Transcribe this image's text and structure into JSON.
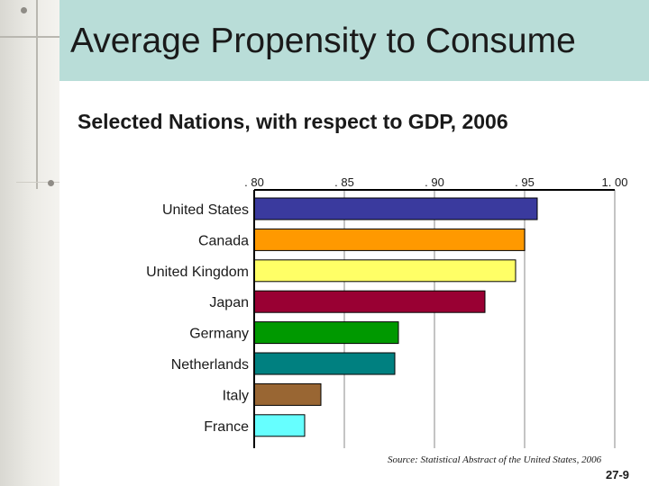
{
  "slide": {
    "title": "Average Propensity to Consume",
    "subtitle": "Selected Nations, with respect to GDP, 2006",
    "source": "Source: Statistical Abstract of the United States, 2006",
    "slide_number": "27-9"
  },
  "chart_data": {
    "type": "bar",
    "orientation": "horizontal",
    "title": "",
    "xlabel": "",
    "ylabel": "",
    "x_axis_position": "top",
    "xlim": [
      0.8,
      1.0
    ],
    "ticks": [
      0.8,
      0.85,
      0.9,
      0.95,
      1.0
    ],
    "tick_labels": [
      ". 80",
      ". 85",
      ". 90",
      ". 95",
      "1. 00"
    ],
    "grid": true,
    "categories": [
      "United States",
      "Canada",
      "United Kingdom",
      "Japan",
      "Germany",
      "Netherlands",
      "Italy",
      "France"
    ],
    "values": [
      0.957,
      0.95,
      0.945,
      0.928,
      0.88,
      0.878,
      0.837,
      0.828
    ],
    "colors": [
      "#3a3a9e",
      "#ff9900",
      "#ffff66",
      "#990033",
      "#009900",
      "#008080",
      "#996633",
      "#66ffff"
    ]
  }
}
